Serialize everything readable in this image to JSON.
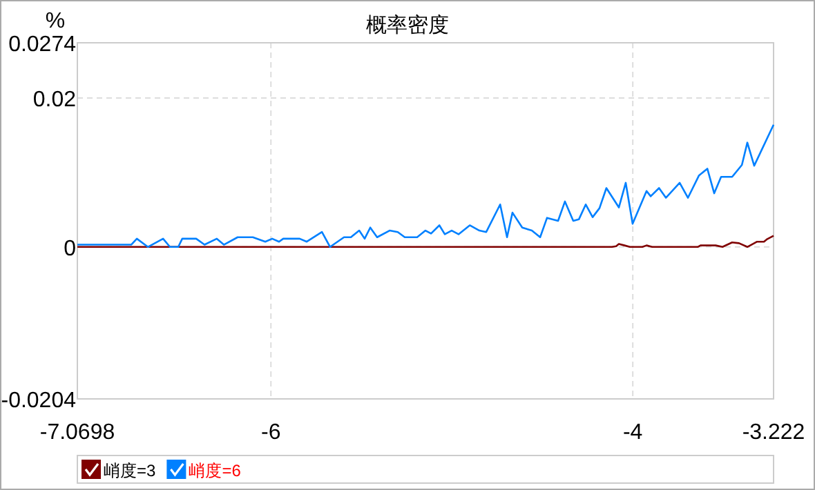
{
  "chart_data": {
    "type": "line",
    "title": "概率密度",
    "ylabel": "%",
    "xlim": [
      -7.0698,
      -3.222
    ],
    "xticks": [
      -7.0698,
      -6,
      -4,
      -3.222
    ],
    "ylim": [
      -0.0204,
      0.0274
    ],
    "yticks": [
      -0.0204,
      0,
      0.02,
      0.0274
    ],
    "grid": true,
    "legend": "bottom",
    "marker": "none",
    "series": [
      {
        "name": "峭度=3",
        "color": "#800000",
        "x": [
          -7.0698,
          -4.115,
          -4.092,
          -4.077,
          -4.046,
          -4.016,
          -3.947,
          -3.924,
          -3.893,
          -3.641,
          -3.626,
          -3.542,
          -3.504,
          -3.451,
          -3.413,
          -3.367,
          -3.313,
          -3.275,
          -3.26,
          -3.222
        ],
        "values": [
          0,
          0,
          0.0001,
          0.0004,
          0.0002,
          0,
          0,
          0.0002,
          0,
          0,
          0.0002,
          0.0002,
          0,
          0.0006,
          0.0005,
          0,
          0.0007,
          0.0007,
          0.001,
          0.0015
        ]
      },
      {
        "name": "峭度=6",
        "color": "#0080ff",
        "x": [
          -7.0698,
          -6.772,
          -6.741,
          -6.68,
          -6.596,
          -6.558,
          -6.512,
          -6.49,
          -6.413,
          -6.367,
          -6.299,
          -6.26,
          -6.184,
          -6.1,
          -6.031,
          -5.993,
          -5.955,
          -5.932,
          -5.841,
          -5.802,
          -5.718,
          -5.673,
          -5.596,
          -5.558,
          -5.512,
          -5.482,
          -5.451,
          -5.413,
          -5.344,
          -5.299,
          -5.26,
          -5.192,
          -5.146,
          -5.115,
          -5.069,
          -5.039,
          -5.001,
          -4.963,
          -4.901,
          -4.848,
          -4.81,
          -4.733,
          -4.695,
          -4.665,
          -4.611,
          -4.558,
          -4.512,
          -4.474,
          -4.413,
          -4.375,
          -4.329,
          -4.298,
          -4.26,
          -4.222,
          -4.184,
          -4.146,
          -4.077,
          -4.039,
          -4.001,
          -3.924,
          -3.901,
          -3.855,
          -3.817,
          -3.741,
          -3.695,
          -3.634,
          -3.588,
          -3.55,
          -3.512,
          -3.451,
          -3.397,
          -3.367,
          -3.329,
          -3.222
        ],
        "values": [
          0.0003,
          0.0003,
          0.0011,
          0,
          0.0011,
          0,
          0,
          0.0011,
          0.0011,
          0.0003,
          0.0011,
          0.0003,
          0.0013,
          0.0013,
          0.0007,
          0.0011,
          0.0007,
          0.0011,
          0.0011,
          0.0007,
          0.002,
          0,
          0.0013,
          0.0013,
          0.0022,
          0.0011,
          0.0026,
          0.0013,
          0.0022,
          0.002,
          0.0013,
          0.0013,
          0.0022,
          0.0018,
          0.0029,
          0.0017,
          0.0022,
          0.0017,
          0.0029,
          0.0022,
          0.002,
          0.0057,
          0.0013,
          0.0046,
          0.0026,
          0.0022,
          0.0013,
          0.0039,
          0.0035,
          0.0061,
          0.0035,
          0.0037,
          0.0057,
          0.004,
          0.0052,
          0.0079,
          0.0053,
          0.0086,
          0.0031,
          0.0075,
          0.0068,
          0.0079,
          0.0066,
          0.0086,
          0.0066,
          0.0096,
          0.0105,
          0.0072,
          0.0094,
          0.0094,
          0.011,
          0.014,
          0.0109,
          0.0164
        ]
      }
    ]
  }
}
